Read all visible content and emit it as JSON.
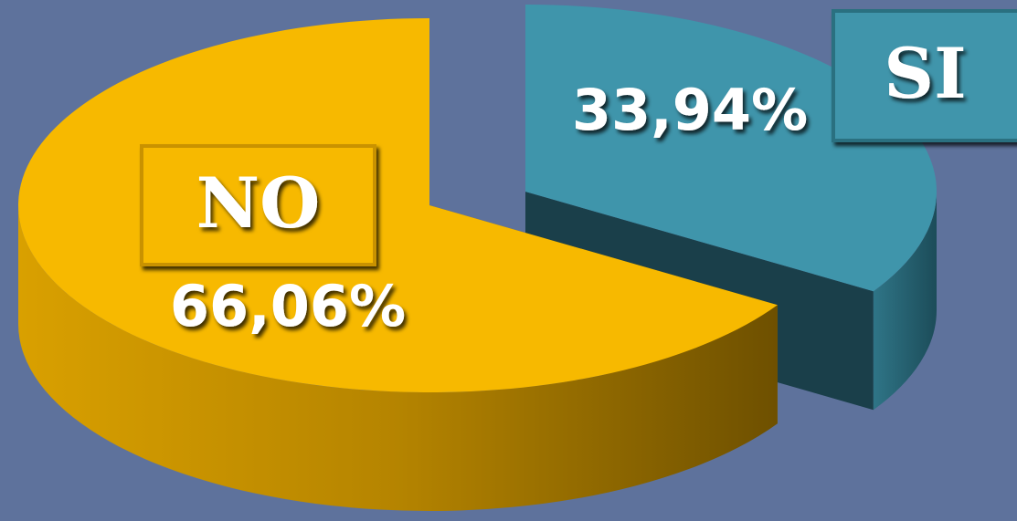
{
  "chart_data": {
    "type": "pie",
    "categories": [
      "NO",
      "SI"
    ],
    "values": [
      66.06,
      33.94
    ],
    "value_labels": [
      "66,06%",
      "33,94%"
    ],
    "colors": [
      "#f7b900",
      "#3f95ab"
    ]
  }
}
